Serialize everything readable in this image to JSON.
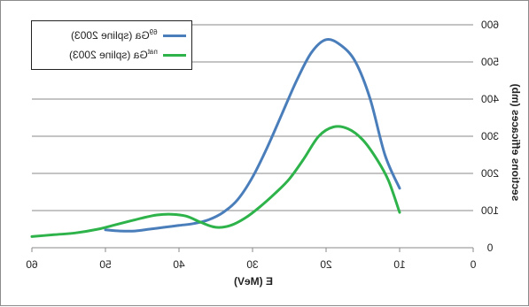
{
  "chart_data": {
    "type": "line",
    "mirrored": true,
    "xlabel": "E (MeV)",
    "ylabel": "sections efficaces (mb)",
    "xlim": [
      0,
      60
    ],
    "ylim": [
      0,
      600
    ],
    "x_ticks": [
      "0",
      "10",
      "20",
      "30",
      "40",
      "50",
      "60"
    ],
    "y_ticks": [
      "0",
      "100",
      "200",
      "300",
      "400",
      "500",
      "600"
    ],
    "grid": "horizontal",
    "legend_position": "top-left",
    "series": [
      {
        "name": "69Ga (spline 2003)",
        "superscript": "69",
        "label_rest": "Ga (spline 2003)",
        "color": "#4a7ebb",
        "points": [
          [
            10,
            160
          ],
          [
            12,
            250
          ],
          [
            14,
            400
          ],
          [
            16,
            500
          ],
          [
            18,
            545
          ],
          [
            20,
            560
          ],
          [
            22,
            525
          ],
          [
            24,
            450
          ],
          [
            26,
            360
          ],
          [
            28,
            270
          ],
          [
            30,
            190
          ],
          [
            32,
            130
          ],
          [
            34,
            95
          ],
          [
            36,
            75
          ],
          [
            38,
            65
          ],
          [
            40,
            60
          ],
          [
            42,
            55
          ],
          [
            44,
            50
          ],
          [
            46,
            45
          ],
          [
            48,
            45
          ],
          [
            50,
            48
          ]
        ]
      },
      {
        "name": "natGa (spline 2003)",
        "superscript": "nat",
        "label_rest": "Ga (spline 2003)",
        "color": "#2db34a",
        "points": [
          [
            10,
            95
          ],
          [
            11.5,
            180
          ],
          [
            13,
            235
          ],
          [
            15,
            290
          ],
          [
            17,
            320
          ],
          [
            19,
            325
          ],
          [
            21,
            300
          ],
          [
            23,
            240
          ],
          [
            25,
            185
          ],
          [
            27,
            145
          ],
          [
            29,
            110
          ],
          [
            31,
            80
          ],
          [
            33,
            60
          ],
          [
            35,
            55
          ],
          [
            37,
            68
          ],
          [
            39,
            85
          ],
          [
            41,
            90
          ],
          [
            43,
            88
          ],
          [
            45,
            80
          ],
          [
            47,
            70
          ],
          [
            49,
            60
          ],
          [
            51,
            50
          ],
          [
            54,
            40
          ],
          [
            57,
            35
          ],
          [
            60,
            30
          ]
        ]
      }
    ]
  }
}
